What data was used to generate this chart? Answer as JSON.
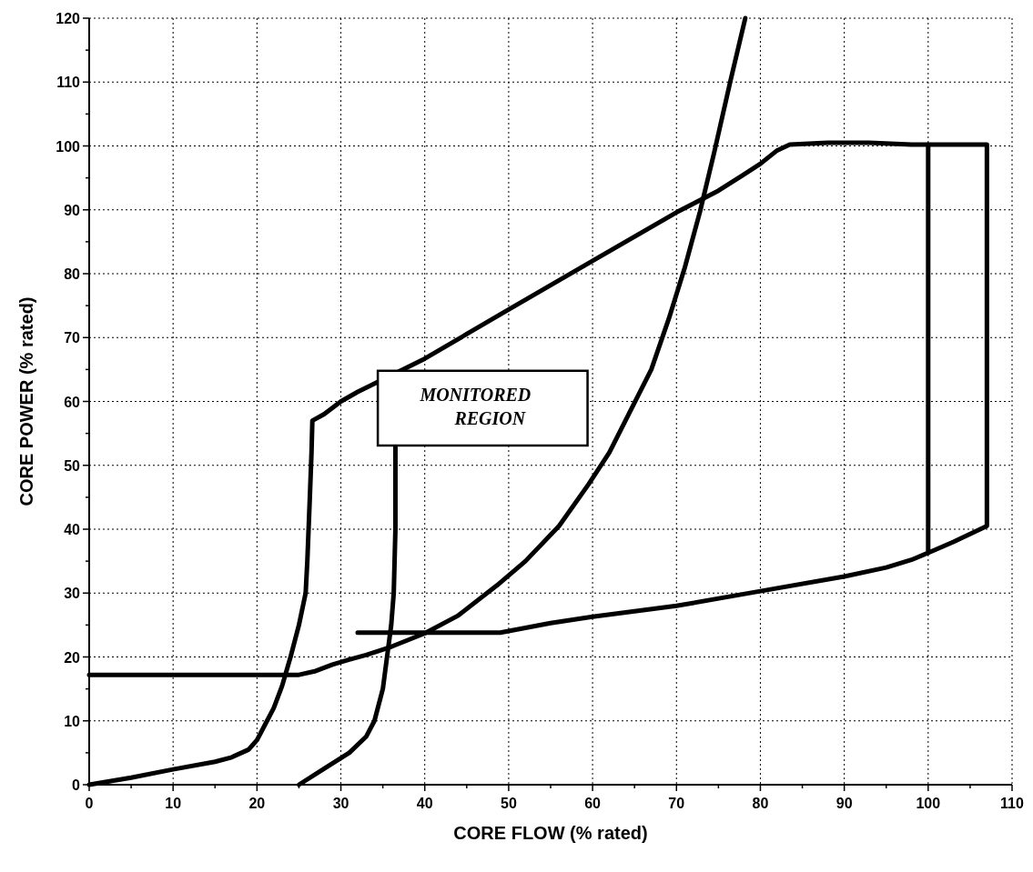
{
  "chart_data": {
    "type": "line",
    "xlabel": "CORE FLOW (% rated)",
    "ylabel": "CORE POWER (% rated)",
    "xlim": [
      0,
      110
    ],
    "ylim": [
      0,
      120
    ],
    "xticks": [
      0,
      {
        "value": 5,
        "label": null
      },
      10,
      {
        "value": 15,
        "label": null
      },
      20,
      {
        "value": 25,
        "label": null
      },
      30,
      {
        "value": 35,
        "label": null
      },
      40,
      {
        "value": 45,
        "label": null
      },
      50,
      {
        "value": 55,
        "label": null
      },
      60,
      {
        "value": 65,
        "label": null
      },
      70,
      {
        "value": 75,
        "label": null
      },
      80,
      {
        "value": 85,
        "label": null
      },
      90,
      {
        "value": 95,
        "label": null
      },
      100,
      {
        "value": 105,
        "label": null
      },
      110
    ],
    "yticks": [
      0,
      {
        "value": 5,
        "label": null
      },
      10,
      {
        "value": 15,
        "label": null
      },
      20,
      {
        "value": 25,
        "label": null
      },
      30,
      {
        "value": 35,
        "label": null
      },
      40,
      {
        "value": 45,
        "label": null
      },
      50,
      {
        "value": 55,
        "label": null
      },
      60,
      {
        "value": 65,
        "label": null
      },
      70,
      {
        "value": 75,
        "label": null
      },
      80,
      {
        "value": 85,
        "label": null
      },
      90,
      {
        "value": 95,
        "label": null
      },
      100,
      {
        "value": 105,
        "label": null
      },
      110,
      {
        "value": 115,
        "label": null
      },
      120
    ],
    "grid": true,
    "marker": "none",
    "line_style": "solid",
    "annotations": [
      "MONITORED REGION"
    ],
    "series": [
      {
        "color": "#000000",
        "x": [
          0,
          5,
          10,
          15,
          17,
          19,
          20,
          21,
          22,
          23,
          24,
          25,
          25.8,
          26,
          26.3,
          26.5,
          26.6,
          28,
          30,
          32,
          40,
          50,
          60,
          70,
          75,
          78,
          80,
          82,
          83.5,
          88,
          93,
          98,
          107,
          107,
          103,
          100
        ],
        "values": [
          0,
          1.1,
          2.4,
          3.6,
          4.3,
          5.5,
          7,
          9.5,
          12,
          15.5,
          20,
          25,
          30,
          35,
          45,
          52,
          57,
          58,
          60,
          61.5,
          66.7,
          74.4,
          82,
          89.6,
          93,
          95.5,
          97.2,
          99.3,
          100.2,
          100.5,
          100.5,
          100.2,
          100.2,
          40.5,
          38,
          36.3
        ]
      },
      {
        "color": "#000000",
        "x": [
          32,
          49,
          55,
          60,
          70,
          80,
          90,
          95,
          98,
          100,
          100
        ],
        "values": [
          23.8,
          23.8,
          25.3,
          26.3,
          28,
          30.3,
          32.6,
          34,
          35.2,
          36.3,
          100.2
        ]
      },
      {
        "color": "#000000",
        "x": [
          25,
          28,
          31,
          33,
          34,
          35,
          35.5,
          36,
          36.3,
          36.5,
          36.5
        ],
        "values": [
          0,
          2.5,
          5,
          7.5,
          10,
          15,
          20,
          25,
          30,
          40,
          53
        ]
      },
      {
        "color": "#000000",
        "x": [
          0,
          25,
          27,
          29,
          31,
          33,
          36,
          40,
          44,
          48.6,
          52,
          56,
          59.5,
          62,
          64.3,
          67,
          69.1,
          71,
          72.8,
          74.5,
          76.4,
          78.2
        ],
        "values": [
          17.2,
          17.2,
          17.8,
          18.8,
          19.6,
          20.3,
          21.6,
          23.7,
          26.5,
          31.2,
          35,
          40.5,
          47,
          52,
          58,
          65,
          73,
          81,
          89.7,
          99,
          110,
          120
        ]
      }
    ]
  }
}
